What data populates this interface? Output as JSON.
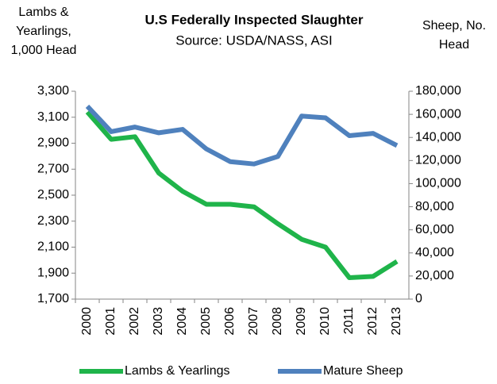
{
  "chart_data": {
    "type": "line",
    "title": "U.S  Federally Inspected Slaughter",
    "subtitle": "Source: USDA/NASS, ASI",
    "y_label": [
      "Lambs &",
      "Yearlings,",
      "1,000 Head"
    ],
    "y2_label": [
      "Sheep, No.",
      "Head"
    ],
    "categories": [
      "2000",
      "2001",
      "2002",
      "2003",
      "2004",
      "2005",
      "2006",
      "2007",
      "2008",
      "2009",
      "2010",
      "2011",
      "2012",
      "2013"
    ],
    "series": [
      {
        "name": "Lambs & Yearlings",
        "color": "#1fb44a",
        "values": [
          3140,
          2930,
          2950,
          2670,
          2530,
          2430,
          2430,
          2410,
          2280,
          2160,
          2100,
          1865,
          1875,
          1990
        ]
      },
      {
        "name": "Mature Sheep",
        "color": "#4f81bd",
        "axis": "y2",
        "values": [
          167000,
          145000,
          149000,
          144000,
          147000,
          130000,
          119000,
          117000,
          123500,
          158500,
          157000,
          141500,
          143500,
          133000
        ]
      }
    ],
    "ylim": [
      1700,
      3300
    ],
    "yticks": [
      {
        "value": 1700,
        "label": "1,700"
      },
      {
        "value": 1900,
        "label": "1,900"
      },
      {
        "value": 2100,
        "label": "2,100"
      },
      {
        "value": 2300,
        "label": "2,300"
      },
      {
        "value": 2500,
        "label": "2,500"
      },
      {
        "value": 2700,
        "label": "2,700"
      },
      {
        "value": 2900,
        "label": "2,900"
      },
      {
        "value": 3100,
        "label": "3,100"
      },
      {
        "value": 3300,
        "label": "3,300"
      }
    ],
    "y2lim": [
      0,
      180000
    ],
    "y2ticks": [
      0,
      {
        "value": 20000,
        "label": "20,000"
      },
      {
        "value": 40000,
        "label": "40,000"
      },
      {
        "value": 60000,
        "label": "60,000"
      },
      {
        "value": 80000,
        "label": "80,000"
      },
      {
        "value": 100000,
        "label": "100,000"
      },
      {
        "value": 120000,
        "label": "120,000"
      },
      {
        "value": 140000,
        "label": "140,000"
      },
      {
        "value": 160000,
        "label": "160,000"
      },
      {
        "value": 180000,
        "label": "180,000"
      }
    ],
    "legend": "bottom"
  }
}
